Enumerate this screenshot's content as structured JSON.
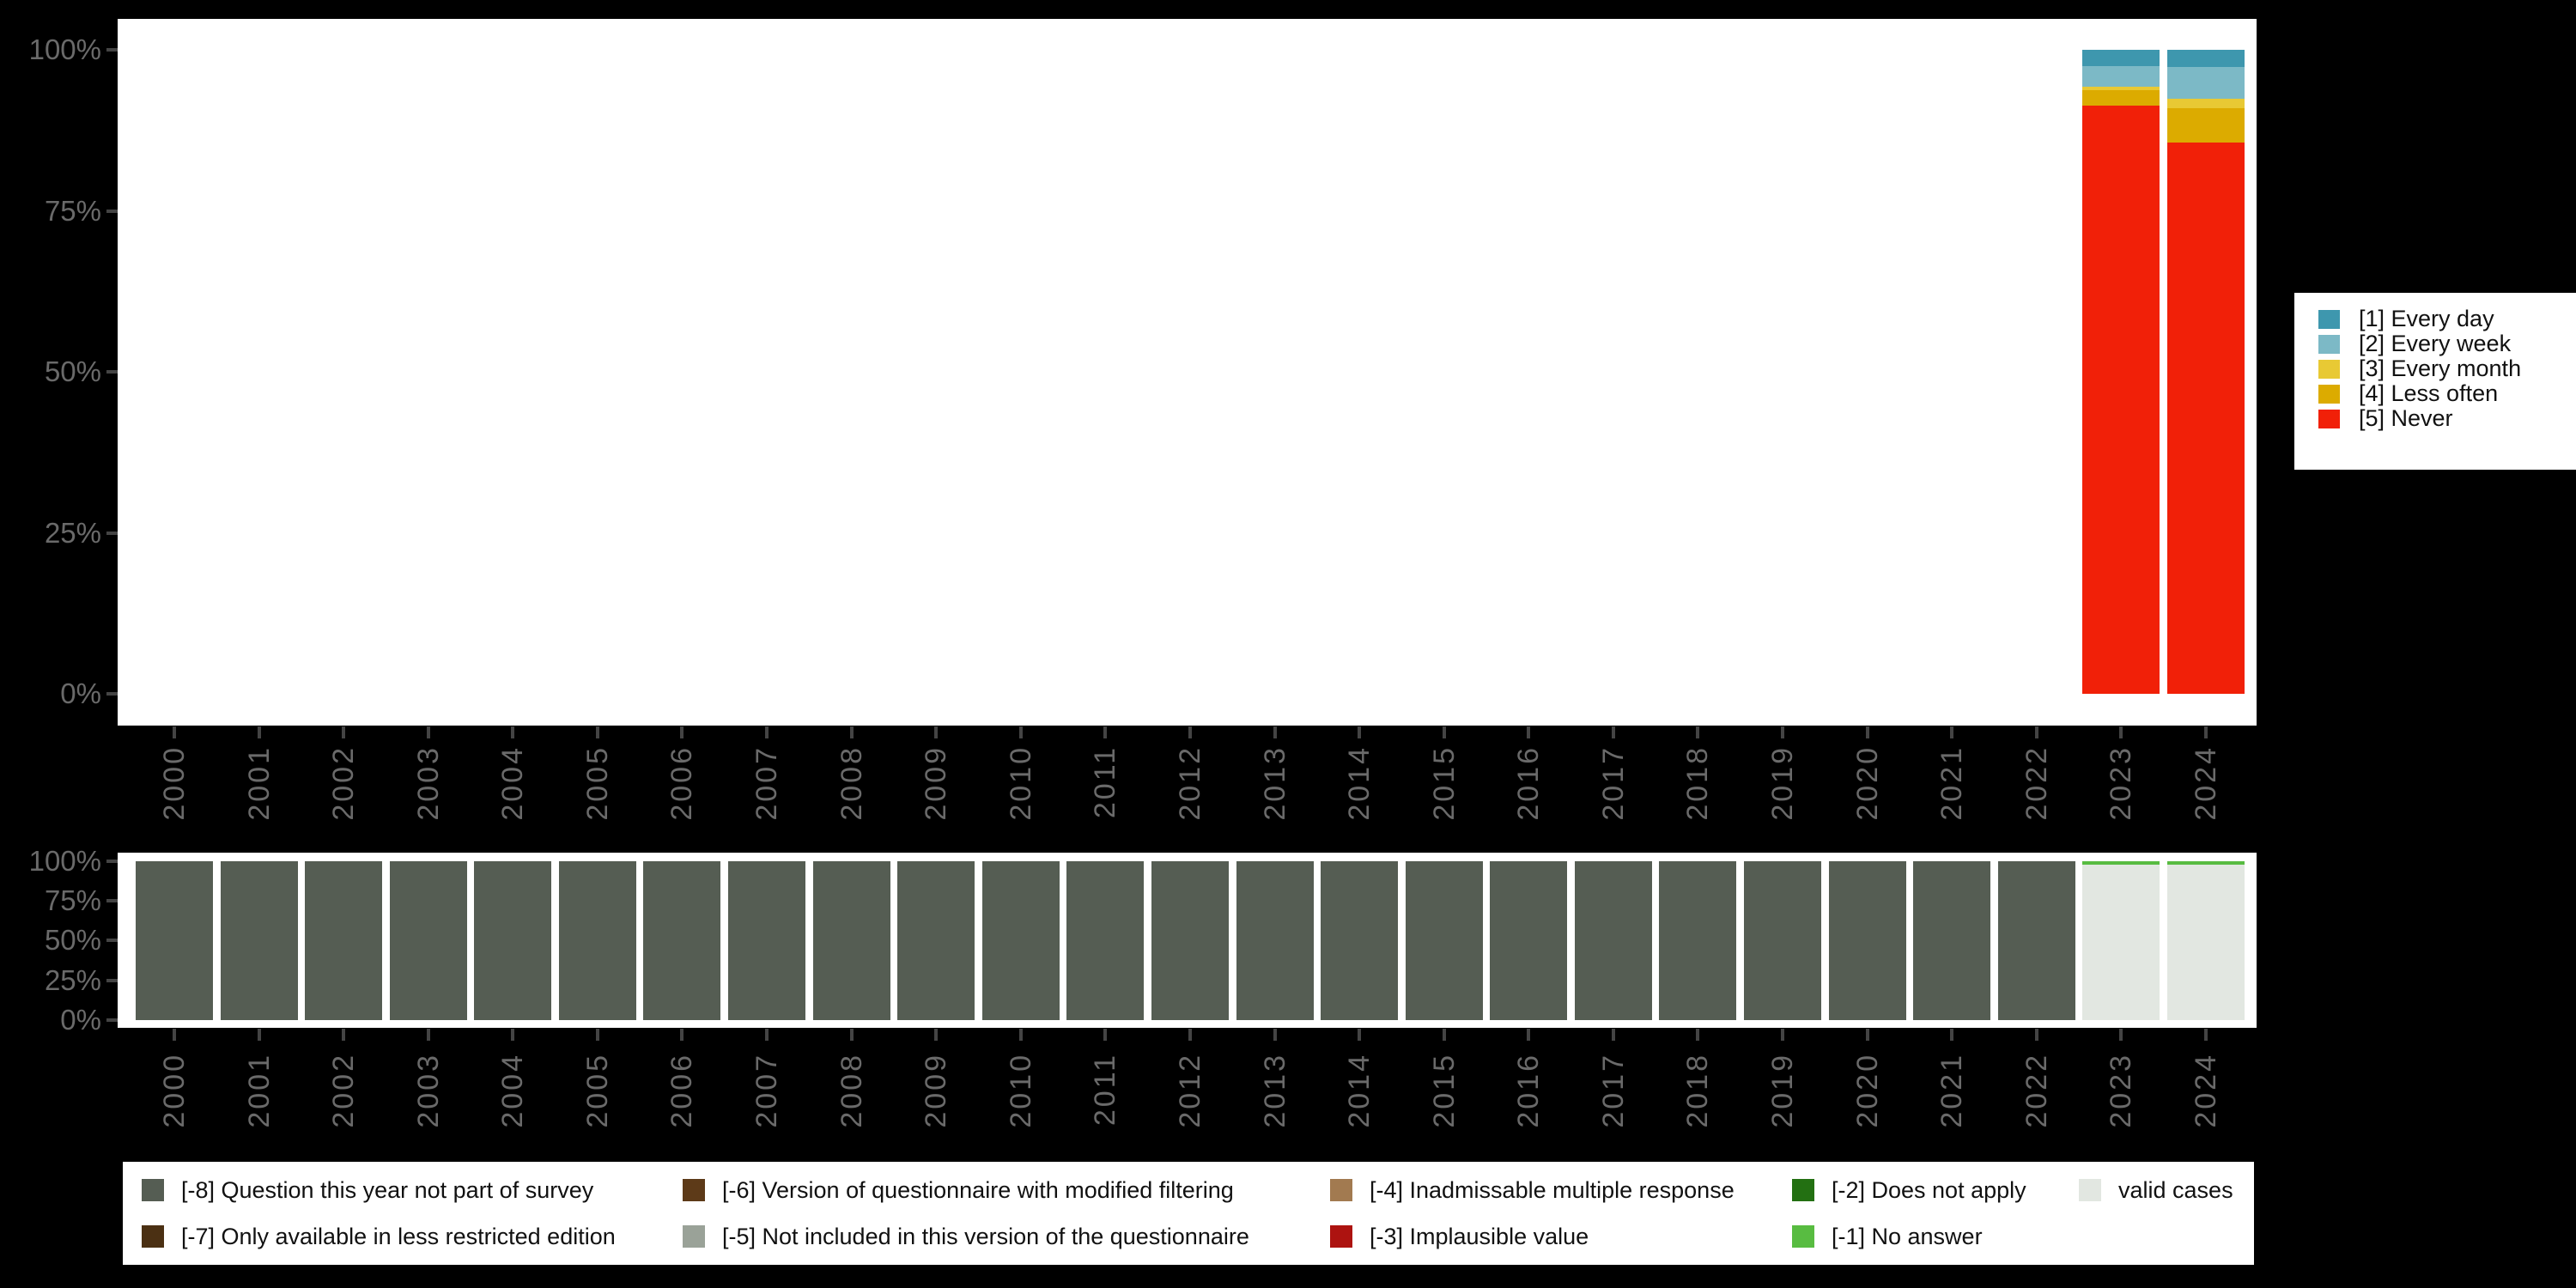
{
  "page": {
    "background": "#000000"
  },
  "chart_data": [
    {
      "id": "frequency-distribution",
      "type": "bar",
      "stacked": true,
      "unit": "percent",
      "title": "",
      "ylim": [
        0,
        100
      ],
      "grid": false,
      "legend_position": "right",
      "y_axis": {
        "ticks": [
          "100%",
          "75%",
          "50%",
          "25%",
          "0%"
        ]
      },
      "x_axis": {
        "ticks": [
          "2000",
          "2001",
          "2002",
          "2003",
          "2004",
          "2005",
          "2006",
          "2007",
          "2008",
          "2009",
          "2010",
          "2011",
          "2012",
          "2013",
          "2014",
          "2015",
          "2016",
          "2017",
          "2018",
          "2019",
          "2020",
          "2021",
          "2022",
          "2023",
          "2024"
        ]
      },
      "categories": [
        {
          "key": "every_day",
          "label": "[1] Every day",
          "color": "#3e97ae"
        },
        {
          "key": "every_week",
          "label": "[2] Every week",
          "color": "#7cb9c6"
        },
        {
          "key": "every_month",
          "label": "[3] Every month",
          "color": "#e8c934"
        },
        {
          "key": "less_often",
          "label": "[4] Less often",
          "color": "#dcab00"
        },
        {
          "key": "never",
          "label": "[5] Never",
          "color": "#f12008"
        }
      ],
      "values": [
        {
          "year": "2023",
          "segments": [
            {
              "key": "every_day",
              "pct": 2.5
            },
            {
              "key": "every_week",
              "pct": 3.2
            },
            {
              "key": "every_month",
              "pct": 0.5
            },
            {
              "key": "less_often",
              "pct": 2.5
            },
            {
              "key": "never",
              "pct": 91.3
            }
          ]
        },
        {
          "year": "2024",
          "segments": [
            {
              "key": "every_day",
              "pct": 2.6
            },
            {
              "key": "every_week",
              "pct": 5.0
            },
            {
              "key": "every_month",
              "pct": 1.5
            },
            {
              "key": "less_often",
              "pct": 5.3
            },
            {
              "key": "never",
              "pct": 85.6
            }
          ]
        }
      ]
    },
    {
      "id": "missing-values-by-year",
      "type": "bar",
      "stacked": true,
      "unit": "percent",
      "title": "",
      "ylim": [
        0,
        100
      ],
      "grid": false,
      "legend_position": "bottom",
      "y_axis": {
        "ticks": [
          "100%",
          "75%",
          "50%",
          "25%",
          "0%"
        ]
      },
      "x_axis": {
        "ticks": [
          "2000",
          "2001",
          "2002",
          "2003",
          "2004",
          "2005",
          "2006",
          "2007",
          "2008",
          "2009",
          "2010",
          "2011",
          "2012",
          "2013",
          "2014",
          "2015",
          "2016",
          "2017",
          "2018",
          "2019",
          "2020",
          "2021",
          "2022",
          "2023",
          "2024"
        ]
      },
      "categories": [
        {
          "key": "missing_8",
          "label": "[-8] Question this year not part of survey",
          "color": "#555d53"
        },
        {
          "key": "missing_7",
          "label": "[-7] Only available in less restricted edition",
          "color": "#4b3013"
        },
        {
          "key": "missing_6",
          "label": "[-6] Version of questionnaire with modified filtering",
          "color": "#5d3a18"
        },
        {
          "key": "missing_5",
          "label": "[-5] Not included in this version of the questionnaire",
          "color": "#9aa298"
        },
        {
          "key": "missing_4",
          "label": "[-4] Inadmissable multiple response",
          "color": "#a27a50"
        },
        {
          "key": "missing_3",
          "label": "[-3] Implausible value",
          "color": "#ad1310"
        },
        {
          "key": "missing_2",
          "label": "[-2] Does not apply",
          "color": "#237012"
        },
        {
          "key": "missing_1",
          "label": "[-1] No answer",
          "color": "#58bc41"
        },
        {
          "key": "valid",
          "label": "valid cases",
          "color": "#e2e7e1"
        }
      ],
      "values": [
        {
          "year": "2000",
          "segments": [
            {
              "key": "missing_8",
              "pct": 100
            }
          ]
        },
        {
          "year": "2001",
          "segments": [
            {
              "key": "missing_8",
              "pct": 100
            }
          ]
        },
        {
          "year": "2002",
          "segments": [
            {
              "key": "missing_8",
              "pct": 100
            }
          ]
        },
        {
          "year": "2003",
          "segments": [
            {
              "key": "missing_8",
              "pct": 100
            }
          ]
        },
        {
          "year": "2004",
          "segments": [
            {
              "key": "missing_8",
              "pct": 100
            }
          ]
        },
        {
          "year": "2005",
          "segments": [
            {
              "key": "missing_8",
              "pct": 100
            }
          ]
        },
        {
          "year": "2006",
          "segments": [
            {
              "key": "missing_8",
              "pct": 100
            }
          ]
        },
        {
          "year": "2007",
          "segments": [
            {
              "key": "missing_8",
              "pct": 100
            }
          ]
        },
        {
          "year": "2008",
          "segments": [
            {
              "key": "missing_8",
              "pct": 100
            }
          ]
        },
        {
          "year": "2009",
          "segments": [
            {
              "key": "missing_8",
              "pct": 100
            }
          ]
        },
        {
          "year": "2010",
          "segments": [
            {
              "key": "missing_8",
              "pct": 100
            }
          ]
        },
        {
          "year": "2011",
          "segments": [
            {
              "key": "missing_8",
              "pct": 100
            }
          ]
        },
        {
          "year": "2012",
          "segments": [
            {
              "key": "missing_8",
              "pct": 100
            }
          ]
        },
        {
          "year": "2013",
          "segments": [
            {
              "key": "missing_8",
              "pct": 100
            }
          ]
        },
        {
          "year": "2014",
          "segments": [
            {
              "key": "missing_8",
              "pct": 100
            }
          ]
        },
        {
          "year": "2015",
          "segments": [
            {
              "key": "missing_8",
              "pct": 100
            }
          ]
        },
        {
          "year": "2016",
          "segments": [
            {
              "key": "missing_8",
              "pct": 100
            }
          ]
        },
        {
          "year": "2017",
          "segments": [
            {
              "key": "missing_8",
              "pct": 100
            }
          ]
        },
        {
          "year": "2018",
          "segments": [
            {
              "key": "missing_8",
              "pct": 100
            }
          ]
        },
        {
          "year": "2019",
          "segments": [
            {
              "key": "missing_8",
              "pct": 100
            }
          ]
        },
        {
          "year": "2020",
          "segments": [
            {
              "key": "missing_8",
              "pct": 100
            }
          ]
        },
        {
          "year": "2021",
          "segments": [
            {
              "key": "missing_8",
              "pct": 100
            }
          ]
        },
        {
          "year": "2022",
          "segments": [
            {
              "key": "missing_8",
              "pct": 100
            }
          ]
        },
        {
          "year": "2023",
          "segments": [
            {
              "key": "missing_1",
              "pct": 2.5
            },
            {
              "key": "valid",
              "pct": 97.5
            }
          ]
        },
        {
          "year": "2024",
          "segments": [
            {
              "key": "missing_1",
              "pct": 2.5
            },
            {
              "key": "valid",
              "pct": 97.5
            }
          ]
        }
      ]
    }
  ]
}
